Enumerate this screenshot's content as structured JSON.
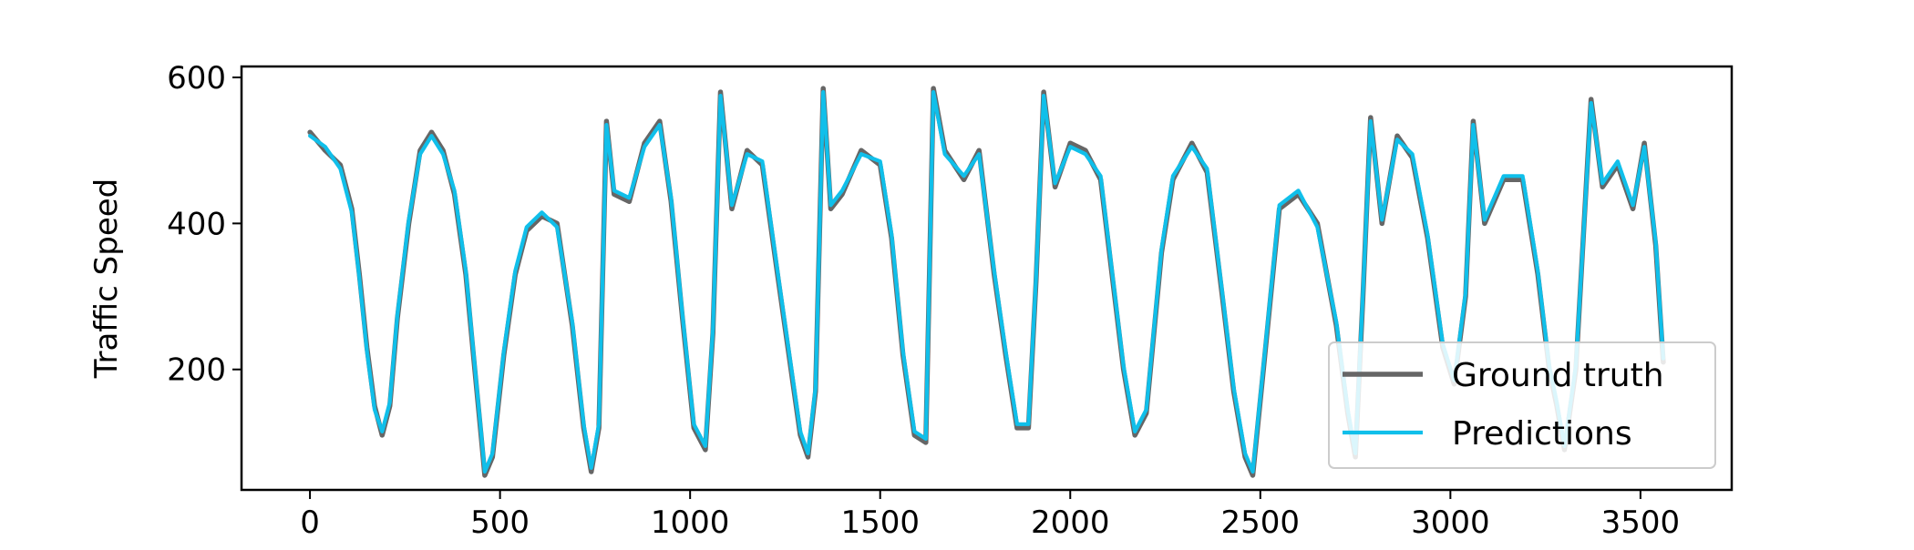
{
  "chart_data": {
    "type": "line",
    "title": "",
    "xlabel": "",
    "ylabel": "Traffic Speed",
    "xlim": [
      -180,
      3740
    ],
    "ylim": [
      35,
      615
    ],
    "xticks": [
      0,
      500,
      1000,
      1500,
      2000,
      2500,
      3000,
      3500
    ],
    "xtick_labels": [
      "0",
      "500",
      "1000",
      "1500",
      "2000",
      "2500",
      "3000",
      "3500"
    ],
    "yticks": [
      200,
      400,
      600
    ],
    "ytick_labels": [
      "200",
      "400",
      "600"
    ],
    "grid": false,
    "legend_position": "lower-right",
    "series": [
      {
        "name": "Ground truth",
        "color": "#666666",
        "points": [
          [
            0,
            525
          ],
          [
            40,
            500
          ],
          [
            80,
            480
          ],
          [
            110,
            420
          ],
          [
            130,
            330
          ],
          [
            150,
            230
          ],
          [
            170,
            150
          ],
          [
            190,
            110
          ],
          [
            210,
            150
          ],
          [
            230,
            270
          ],
          [
            260,
            400
          ],
          [
            290,
            500
          ],
          [
            320,
            525
          ],
          [
            350,
            500
          ],
          [
            380,
            440
          ],
          [
            410,
            330
          ],
          [
            430,
            220
          ],
          [
            450,
            110
          ],
          [
            460,
            55
          ],
          [
            480,
            80
          ],
          [
            510,
            220
          ],
          [
            540,
            330
          ],
          [
            570,
            390
          ],
          [
            610,
            410
          ],
          [
            650,
            400
          ],
          [
            690,
            260
          ],
          [
            720,
            120
          ],
          [
            740,
            60
          ],
          [
            760,
            120
          ],
          [
            780,
            540
          ],
          [
            800,
            440
          ],
          [
            840,
            430
          ],
          [
            880,
            510
          ],
          [
            920,
            540
          ],
          [
            950,
            430
          ],
          [
            980,
            270
          ],
          [
            1010,
            120
          ],
          [
            1040,
            90
          ],
          [
            1060,
            250
          ],
          [
            1080,
            580
          ],
          [
            1110,
            420
          ],
          [
            1150,
            500
          ],
          [
            1190,
            480
          ],
          [
            1230,
            330
          ],
          [
            1260,
            220
          ],
          [
            1290,
            110
          ],
          [
            1310,
            80
          ],
          [
            1330,
            170
          ],
          [
            1350,
            585
          ],
          [
            1370,
            420
          ],
          [
            1400,
            440
          ],
          [
            1450,
            500
          ],
          [
            1500,
            480
          ],
          [
            1530,
            380
          ],
          [
            1560,
            220
          ],
          [
            1590,
            110
          ],
          [
            1620,
            100
          ],
          [
            1640,
            585
          ],
          [
            1670,
            500
          ],
          [
            1720,
            460
          ],
          [
            1760,
            500
          ],
          [
            1800,
            330
          ],
          [
            1830,
            220
          ],
          [
            1860,
            120
          ],
          [
            1890,
            120
          ],
          [
            1910,
            320
          ],
          [
            1930,
            580
          ],
          [
            1960,
            450
          ],
          [
            2000,
            510
          ],
          [
            2040,
            500
          ],
          [
            2080,
            460
          ],
          [
            2110,
            330
          ],
          [
            2140,
            200
          ],
          [
            2170,
            110
          ],
          [
            2200,
            140
          ],
          [
            2240,
            360
          ],
          [
            2270,
            460
          ],
          [
            2320,
            510
          ],
          [
            2360,
            470
          ],
          [
            2400,
            300
          ],
          [
            2430,
            170
          ],
          [
            2460,
            80
          ],
          [
            2480,
            55
          ],
          [
            2510,
            210
          ],
          [
            2550,
            420
          ],
          [
            2600,
            440
          ],
          [
            2650,
            400
          ],
          [
            2700,
            260
          ],
          [
            2730,
            140
          ],
          [
            2750,
            80
          ],
          [
            2770,
            300
          ],
          [
            2790,
            545
          ],
          [
            2820,
            400
          ],
          [
            2860,
            520
          ],
          [
            2900,
            490
          ],
          [
            2940,
            380
          ],
          [
            2980,
            230
          ],
          [
            3010,
            180
          ],
          [
            3040,
            300
          ],
          [
            3060,
            540
          ],
          [
            3090,
            400
          ],
          [
            3140,
            460
          ],
          [
            3190,
            460
          ],
          [
            3230,
            330
          ],
          [
            3260,
            200
          ],
          [
            3280,
            150
          ],
          [
            3300,
            90
          ],
          [
            3330,
            200
          ],
          [
            3370,
            570
          ],
          [
            3400,
            450
          ],
          [
            3440,
            480
          ],
          [
            3480,
            420
          ],
          [
            3510,
            510
          ],
          [
            3540,
            370
          ],
          [
            3560,
            210
          ]
        ]
      },
      {
        "name": "Predictions",
        "color": "#10BFEA",
        "points": [
          [
            0,
            520
          ],
          [
            40,
            505
          ],
          [
            80,
            475
          ],
          [
            110,
            415
          ],
          [
            130,
            325
          ],
          [
            150,
            225
          ],
          [
            170,
            145
          ],
          [
            190,
            115
          ],
          [
            210,
            155
          ],
          [
            230,
            275
          ],
          [
            260,
            405
          ],
          [
            290,
            495
          ],
          [
            320,
            520
          ],
          [
            350,
            495
          ],
          [
            380,
            445
          ],
          [
            410,
            335
          ],
          [
            430,
            225
          ],
          [
            450,
            115
          ],
          [
            460,
            60
          ],
          [
            480,
            85
          ],
          [
            510,
            225
          ],
          [
            540,
            335
          ],
          [
            570,
            395
          ],
          [
            610,
            415
          ],
          [
            650,
            395
          ],
          [
            690,
            265
          ],
          [
            720,
            125
          ],
          [
            740,
            65
          ],
          [
            760,
            125
          ],
          [
            780,
            535
          ],
          [
            800,
            445
          ],
          [
            840,
            435
          ],
          [
            880,
            505
          ],
          [
            920,
            535
          ],
          [
            950,
            435
          ],
          [
            980,
            275
          ],
          [
            1010,
            125
          ],
          [
            1040,
            95
          ],
          [
            1060,
            255
          ],
          [
            1080,
            575
          ],
          [
            1110,
            425
          ],
          [
            1150,
            495
          ],
          [
            1190,
            485
          ],
          [
            1230,
            335
          ],
          [
            1260,
            225
          ],
          [
            1290,
            115
          ],
          [
            1310,
            85
          ],
          [
            1330,
            175
          ],
          [
            1350,
            580
          ],
          [
            1370,
            425
          ],
          [
            1400,
            445
          ],
          [
            1450,
            495
          ],
          [
            1500,
            485
          ],
          [
            1530,
            385
          ],
          [
            1560,
            225
          ],
          [
            1590,
            115
          ],
          [
            1620,
            105
          ],
          [
            1640,
            580
          ],
          [
            1670,
            495
          ],
          [
            1720,
            465
          ],
          [
            1760,
            495
          ],
          [
            1800,
            335
          ],
          [
            1830,
            225
          ],
          [
            1860,
            125
          ],
          [
            1890,
            125
          ],
          [
            1910,
            325
          ],
          [
            1930,
            575
          ],
          [
            1960,
            455
          ],
          [
            2000,
            505
          ],
          [
            2040,
            495
          ],
          [
            2080,
            465
          ],
          [
            2110,
            335
          ],
          [
            2140,
            205
          ],
          [
            2170,
            115
          ],
          [
            2200,
            145
          ],
          [
            2240,
            365
          ],
          [
            2270,
            465
          ],
          [
            2320,
            505
          ],
          [
            2360,
            475
          ],
          [
            2400,
            305
          ],
          [
            2430,
            175
          ],
          [
            2460,
            85
          ],
          [
            2480,
            60
          ],
          [
            2510,
            215
          ],
          [
            2550,
            425
          ],
          [
            2600,
            445
          ],
          [
            2650,
            395
          ],
          [
            2700,
            265
          ],
          [
            2730,
            145
          ],
          [
            2750,
            85
          ],
          [
            2770,
            305
          ],
          [
            2790,
            540
          ],
          [
            2820,
            405
          ],
          [
            2860,
            515
          ],
          [
            2900,
            495
          ],
          [
            2940,
            385
          ],
          [
            2980,
            235
          ],
          [
            3010,
            185
          ],
          [
            3040,
            305
          ],
          [
            3060,
            535
          ],
          [
            3090,
            405
          ],
          [
            3140,
            465
          ],
          [
            3190,
            465
          ],
          [
            3230,
            335
          ],
          [
            3260,
            205
          ],
          [
            3280,
            155
          ],
          [
            3300,
            95
          ],
          [
            3330,
            205
          ],
          [
            3370,
            565
          ],
          [
            3400,
            455
          ],
          [
            3440,
            485
          ],
          [
            3480,
            425
          ],
          [
            3510,
            505
          ],
          [
            3540,
            375
          ],
          [
            3560,
            215
          ]
        ]
      }
    ]
  }
}
